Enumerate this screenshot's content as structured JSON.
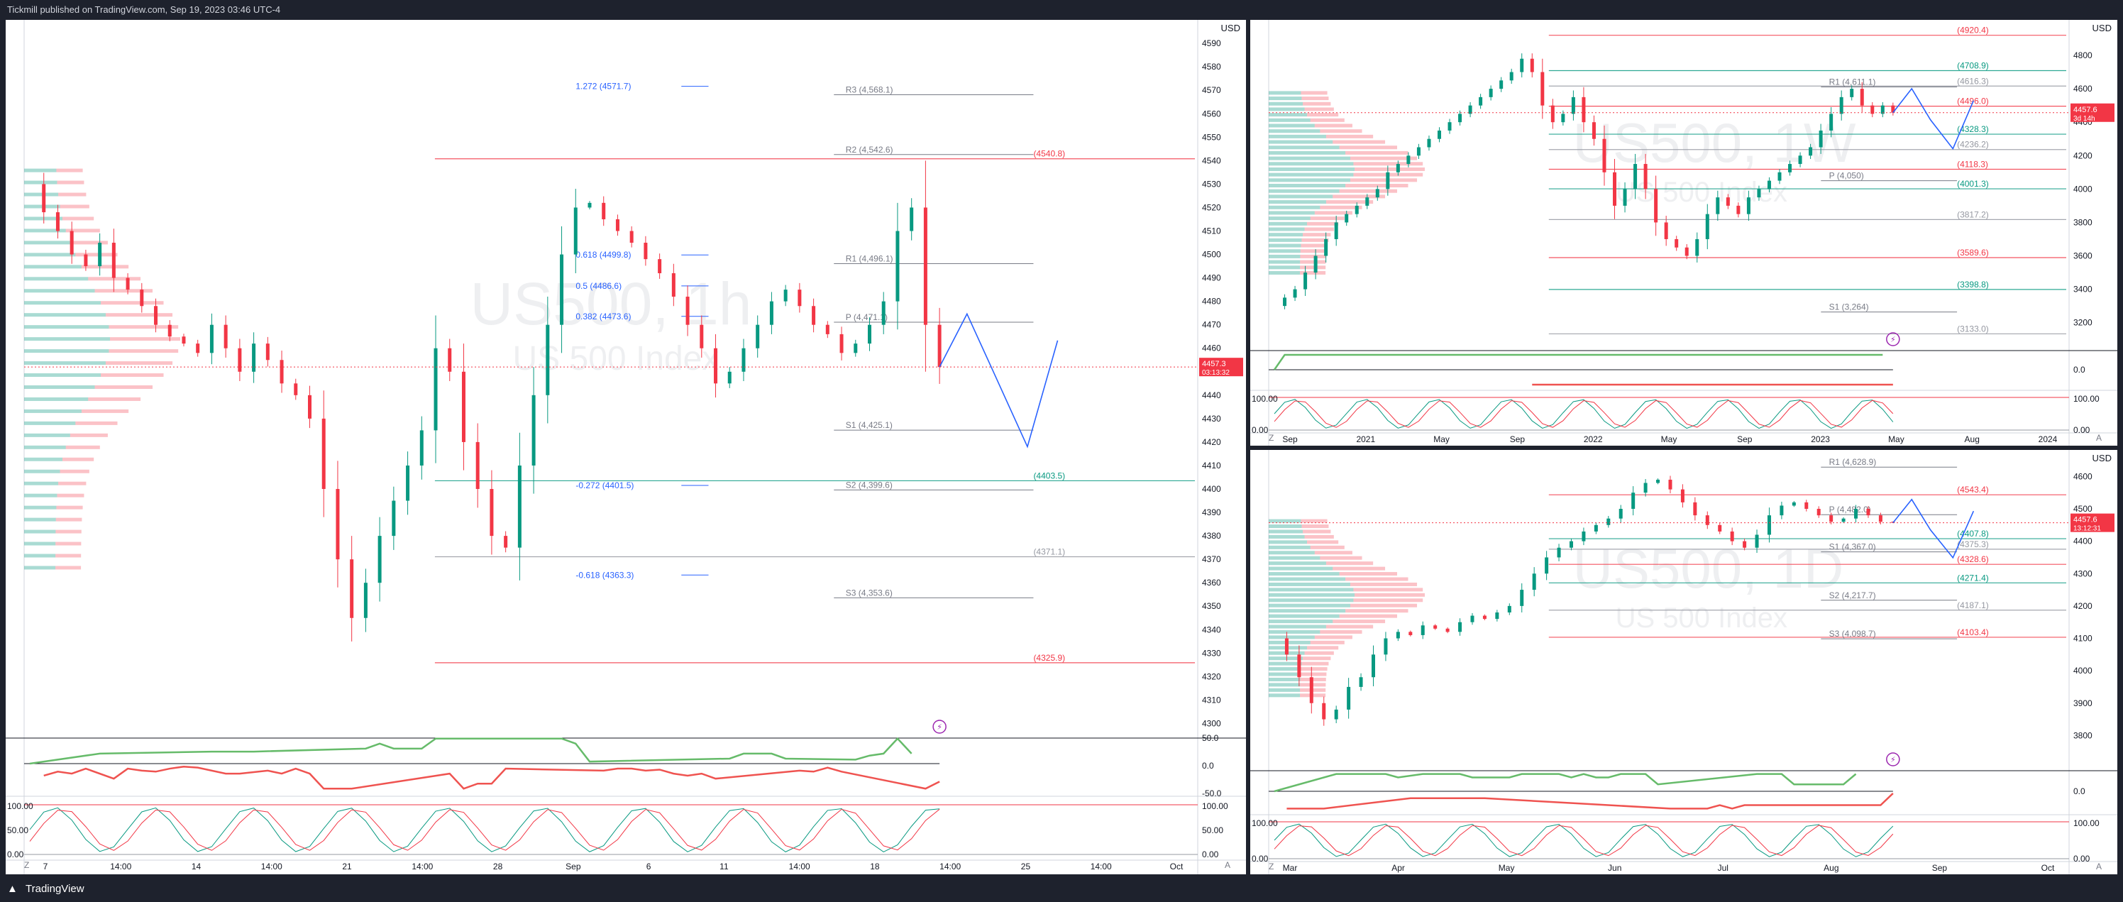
{
  "header": {
    "published_text": "Tickmill published on TradingView.com, Sep 19, 2023 03:46 UTC-4"
  },
  "footer": {
    "brand": "TradingView"
  },
  "colors": {
    "up": "#089981",
    "down": "#f23645",
    "bg": "#ffffff",
    "frame": "#1e222d",
    "accent_blue": "#2962ff"
  },
  "panels": {
    "main": {
      "currency": "USD",
      "corner_left": "Z",
      "corner_right": "A"
    },
    "weekly": {
      "currency": "USD",
      "corner_left": "Z",
      "corner_right": "A",
      "watermark": "US500, 1W",
      "watermark_sub": "US 500 Index"
    },
    "daily": {
      "currency": "USD",
      "corner_left": "Z",
      "corner_right": "A",
      "watermark": "US500, 1D",
      "watermark_sub": "US 500 Index"
    }
  },
  "chart_data": [
    {
      "type": "line",
      "panel": "main",
      "watermark": "US500, 1h",
      "watermark_sub": "US 500 Index",
      "ylim": [
        4295,
        4597
      ],
      "y_ticks": [
        4590,
        4580,
        4570,
        4560,
        4550,
        4540,
        4530,
        4520,
        4510,
        4500,
        4490,
        4480,
        4470,
        4460,
        4450,
        4440,
        4430,
        4420,
        4410,
        4400,
        4390,
        4380,
        4370,
        4360,
        4350,
        4340,
        4330,
        4320,
        4310,
        4300
      ],
      "x_ticks": [
        "7",
        "14:00",
        "14",
        "14:00",
        "21",
        "14:00",
        "28",
        "Sep",
        "6",
        "11",
        "14:00",
        "18",
        "14:00",
        "25",
        "14:00",
        "Oct"
      ],
      "last_price": "4457.3",
      "countdown": "03:13:32",
      "series": [
        {
          "x": [
            0,
            10,
            20,
            30,
            40,
            50,
            60,
            70,
            80,
            90,
            100,
            110,
            120,
            130,
            140,
            150,
            160,
            170,
            180,
            190,
            200,
            210,
            220,
            230,
            240,
            250,
            260,
            270,
            280,
            290,
            300,
            310,
            320,
            330,
            340,
            350,
            360,
            370,
            380,
            390,
            400,
            410,
            420,
            430,
            440,
            450,
            460,
            470,
            480,
            490,
            500,
            510,
            520,
            530,
            540,
            550,
            560,
            570,
            580,
            590,
            600,
            610,
            620,
            630,
            640,
            650
          ],
          "y": [
            4530,
            4518,
            4510,
            4500,
            4495,
            4505,
            4490,
            4485,
            4478,
            4470,
            4465,
            4462,
            4458,
            4470,
            4460,
            4450,
            4462,
            4455,
            4445,
            4440,
            4430,
            4400,
            4370,
            4345,
            4360,
            4380,
            4395,
            4410,
            4425,
            4460,
            4450,
            4420,
            4400,
            4380,
            4375,
            4410,
            4440,
            4470,
            4500,
            4520,
            4522,
            4515,
            4510,
            4505,
            4498,
            4492,
            4482,
            4470,
            4460,
            4445,
            4450,
            4460,
            4470,
            4480,
            4485,
            4478,
            4470,
            4466,
            4458,
            4462,
            4470,
            4480,
            4510,
            4520,
            4470,
            4452
          ]
        }
      ],
      "levels": [
        {
          "label": "(4540.8)",
          "value": 4540.8
        },
        {
          "label": "(4403.5)",
          "value": 4403.5
        },
        {
          "label": "(4371.1)",
          "value": 4371.1
        },
        {
          "label": "(4325.9)",
          "value": 4325.9
        }
      ],
      "pivots": [
        {
          "label": "R3 (4,568.1)",
          "value": 4568.1
        },
        {
          "label": "R2 (4,542.6)",
          "value": 4542.6
        },
        {
          "label": "R1 (4,496.1)",
          "value": 4496.1
        },
        {
          "label": "P (4,471.1)",
          "value": 4471.1
        },
        {
          "label": "S1 (4,425.1)",
          "value": 4425.1
        },
        {
          "label": "S2 (4,399.6)",
          "value": 4399.6
        },
        {
          "label": "S3 (4,353.6)",
          "value": 4353.6
        }
      ],
      "fib": [
        {
          "label": "1.272 (4571.7)",
          "value": 4571.7
        },
        {
          "label": "0.618 (4499.8)",
          "value": 4499.8
        },
        {
          "label": "0.5 (4486.6)",
          "value": 4486.6
        },
        {
          "label": "0.382 (4473.6)",
          "value": 4473.6
        },
        {
          "label": "-0.272 (4401.5)",
          "value": 4401.5
        },
        {
          "label": "-0.618 (4363.3)",
          "value": 4363.3
        }
      ],
      "osc_labels": [
        "50.0",
        "0.0",
        "-50.0"
      ],
      "stoch_labels": [
        "100.00",
        "50.00",
        "0.00"
      ]
    },
    {
      "type": "line",
      "panel": "weekly",
      "ylim": [
        3050,
        4970
      ],
      "y_ticks": [
        4800,
        4600,
        4400,
        4200,
        4000,
        3800,
        3600,
        3400,
        3200
      ],
      "x_ticks": [
        "Sep",
        "2021",
        "May",
        "Sep",
        "2022",
        "May",
        "Sep",
        "2023",
        "May",
        "Aug",
        "2024"
      ],
      "last_price": "4457.6",
      "countdown": "3d 14h",
      "series": [
        {
          "x": [
            0,
            1,
            2,
            3,
            4,
            5,
            6,
            7,
            8,
            9,
            10,
            11,
            12,
            13,
            14,
            15,
            16,
            17,
            18,
            19,
            20,
            21,
            22,
            23,
            24,
            25,
            26,
            27,
            28,
            29,
            30,
            31,
            32,
            33,
            34,
            35,
            36,
            37,
            38,
            39,
            40,
            41,
            42,
            43,
            44,
            45,
            46,
            47,
            48,
            49,
            50,
            51,
            52,
            53,
            54,
            55,
            56,
            57,
            58,
            59,
            60
          ],
          "y": [
            3300,
            3350,
            3400,
            3500,
            3600,
            3700,
            3800,
            3850,
            3900,
            3950,
            4000,
            4100,
            4150,
            4200,
            4250,
            4300,
            4350,
            4400,
            4450,
            4500,
            4550,
            4600,
            4650,
            4700,
            4780,
            4700,
            4500,
            4400,
            4450,
            4550,
            4400,
            4300,
            4100,
            3900,
            4000,
            4150,
            4000,
            3800,
            3700,
            3650,
            3600,
            3700,
            3850,
            3950,
            3900,
            3850,
            3950,
            4000,
            4050,
            4100,
            4150,
            4200,
            4250,
            4350,
            4450,
            4550,
            4600,
            4500,
            4450,
            4500,
            4457
          ]
        }
      ],
      "levels": [
        {
          "label": "(4920.4)",
          "value": 4920.4
        },
        {
          "label": "(4708.9)",
          "value": 4708.9
        },
        {
          "label": "(4616.3)",
          "value": 4616.3
        },
        {
          "label": "(4496.0)",
          "value": 4496.0
        },
        {
          "label": "(4328.3)",
          "value": 4328.3
        },
        {
          "label": "(4236.2)",
          "value": 4236.2
        },
        {
          "label": "(4118.3)",
          "value": 4118.3
        },
        {
          "label": "(4001.3)",
          "value": 4001.3
        },
        {
          "label": "(3817.2)",
          "value": 3817.2
        },
        {
          "label": "(3589.6)",
          "value": 3589.6
        },
        {
          "label": "(3398.8)",
          "value": 3398.8
        },
        {
          "label": "(3133.0)",
          "value": 3133.0
        }
      ],
      "pivots": [
        {
          "label": "R1 (4,611.1)",
          "value": 4611.1
        },
        {
          "label": "P (4,050)",
          "value": 4050
        },
        {
          "label": "S1 (3,264)",
          "value": 3264
        }
      ],
      "osc_labels": [
        "0.0"
      ],
      "stoch_labels": [
        "100.00",
        "0.00"
      ]
    },
    {
      "type": "line",
      "panel": "daily",
      "ylim": [
        3700,
        4660
      ],
      "y_ticks": [
        4600,
        4500,
        4400,
        4300,
        4200,
        4100,
        4000,
        3900,
        3800
      ],
      "x_ticks": [
        "Mar",
        "Apr",
        "May",
        "Jun",
        "Jul",
        "Aug",
        "Sep",
        "Oct"
      ],
      "last_price": "4457.6",
      "countdown": "13:12:31",
      "series": [
        {
          "x": [
            0,
            1,
            2,
            3,
            4,
            5,
            6,
            7,
            8,
            9,
            10,
            11,
            12,
            13,
            14,
            15,
            16,
            17,
            18,
            19,
            20,
            21,
            22,
            23,
            24,
            25,
            26,
            27,
            28,
            29,
            30,
            31,
            32,
            33,
            34,
            35,
            36,
            37,
            38,
            39,
            40,
            41,
            42,
            43,
            44,
            45,
            46,
            47,
            48,
            49,
            50
          ],
          "y": [
            4100,
            4050,
            3980,
            3900,
            3850,
            3880,
            3950,
            3980,
            4050,
            4100,
            4120,
            4110,
            4140,
            4130,
            4120,
            4150,
            4170,
            4160,
            4180,
            4200,
            4250,
            4300,
            4350,
            4380,
            4400,
            4430,
            4450,
            4470,
            4500,
            4550,
            4580,
            4590,
            4560,
            4520,
            4480,
            4450,
            4430,
            4400,
            4380,
            4420,
            4480,
            4510,
            4520,
            4500,
            4480,
            4460,
            4470,
            4500,
            4480,
            4460,
            4457
          ]
        }
      ],
      "levels": [
        {
          "label": "(4543.4)",
          "value": 4543.4
        },
        {
          "label": "(4407.8)",
          "value": 4407.8
        },
        {
          "label": "(4375.3)",
          "value": 4375.3
        },
        {
          "label": "(4328.6)",
          "value": 4328.6
        },
        {
          "label": "(4271.4)",
          "value": 4271.4
        },
        {
          "label": "(4187.1)",
          "value": 4187.1
        },
        {
          "label": "(4103.4)",
          "value": 4103.4
        }
      ],
      "pivots": [
        {
          "label": "R1 (4,628.9)",
          "value": 4628.9
        },
        {
          "label": "P (4,482.0)",
          "value": 4482.0
        },
        {
          "label": "S1 (4,367.0)",
          "value": 4367.0
        },
        {
          "label": "S2 (4,217.7)",
          "value": 4217.7
        },
        {
          "label": "S3 (4,098.7)",
          "value": 4098.7
        }
      ],
      "osc_labels": [
        "0.0"
      ],
      "stoch_labels": [
        "100.00",
        "0.00"
      ]
    }
  ]
}
